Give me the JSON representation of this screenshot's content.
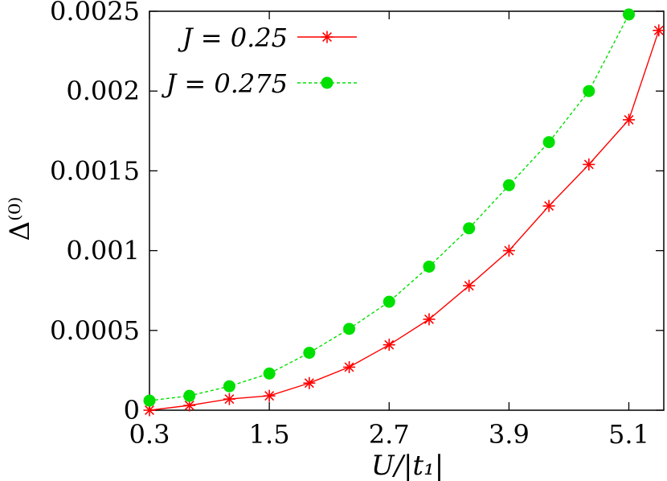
{
  "chart_data": {
    "type": "line",
    "xlabel": "U/|t₁|",
    "ylabel": "Δ⁽⁰⁾",
    "xlim": [
      0.3,
      5.45
    ],
    "ylim": [
      0,
      0.0025
    ],
    "x_ticks": [
      "0.3",
      "1.5",
      "2.7",
      "3.9",
      "5.1"
    ],
    "y_ticks": [
      "0",
      "0.0005",
      "0.001",
      "0.0015",
      "0.002",
      "0.0025"
    ],
    "grid": false,
    "legend_position": "top-left",
    "series": [
      {
        "name": "J = 0.25",
        "color": "#ff0000",
        "marker": "asterisk",
        "line_style": "solid",
        "x": [
          0.3,
          0.7,
          1.1,
          1.5,
          1.9,
          2.3,
          2.7,
          3.1,
          3.5,
          3.9,
          4.3,
          4.7,
          5.1,
          5.4
        ],
        "y": [
          0.0,
          3e-05,
          7e-05,
          9e-05,
          0.00017,
          0.00027,
          0.00041,
          0.00057,
          0.00078,
          0.001,
          0.00128,
          0.00154,
          0.00182,
          0.00238
        ]
      },
      {
        "name": "J = 0.275",
        "color": "#00e000",
        "marker": "circle",
        "line_style": "dashed",
        "x": [
          0.3,
          0.7,
          1.1,
          1.5,
          1.9,
          2.3,
          2.7,
          3.1,
          3.5,
          3.9,
          4.3,
          4.7,
          5.1
        ],
        "y": [
          6e-05,
          9e-05,
          0.00015,
          0.00023,
          0.00036,
          0.00051,
          0.00068,
          0.0009,
          0.00114,
          0.00141,
          0.00168,
          0.002,
          0.00248
        ]
      }
    ]
  }
}
